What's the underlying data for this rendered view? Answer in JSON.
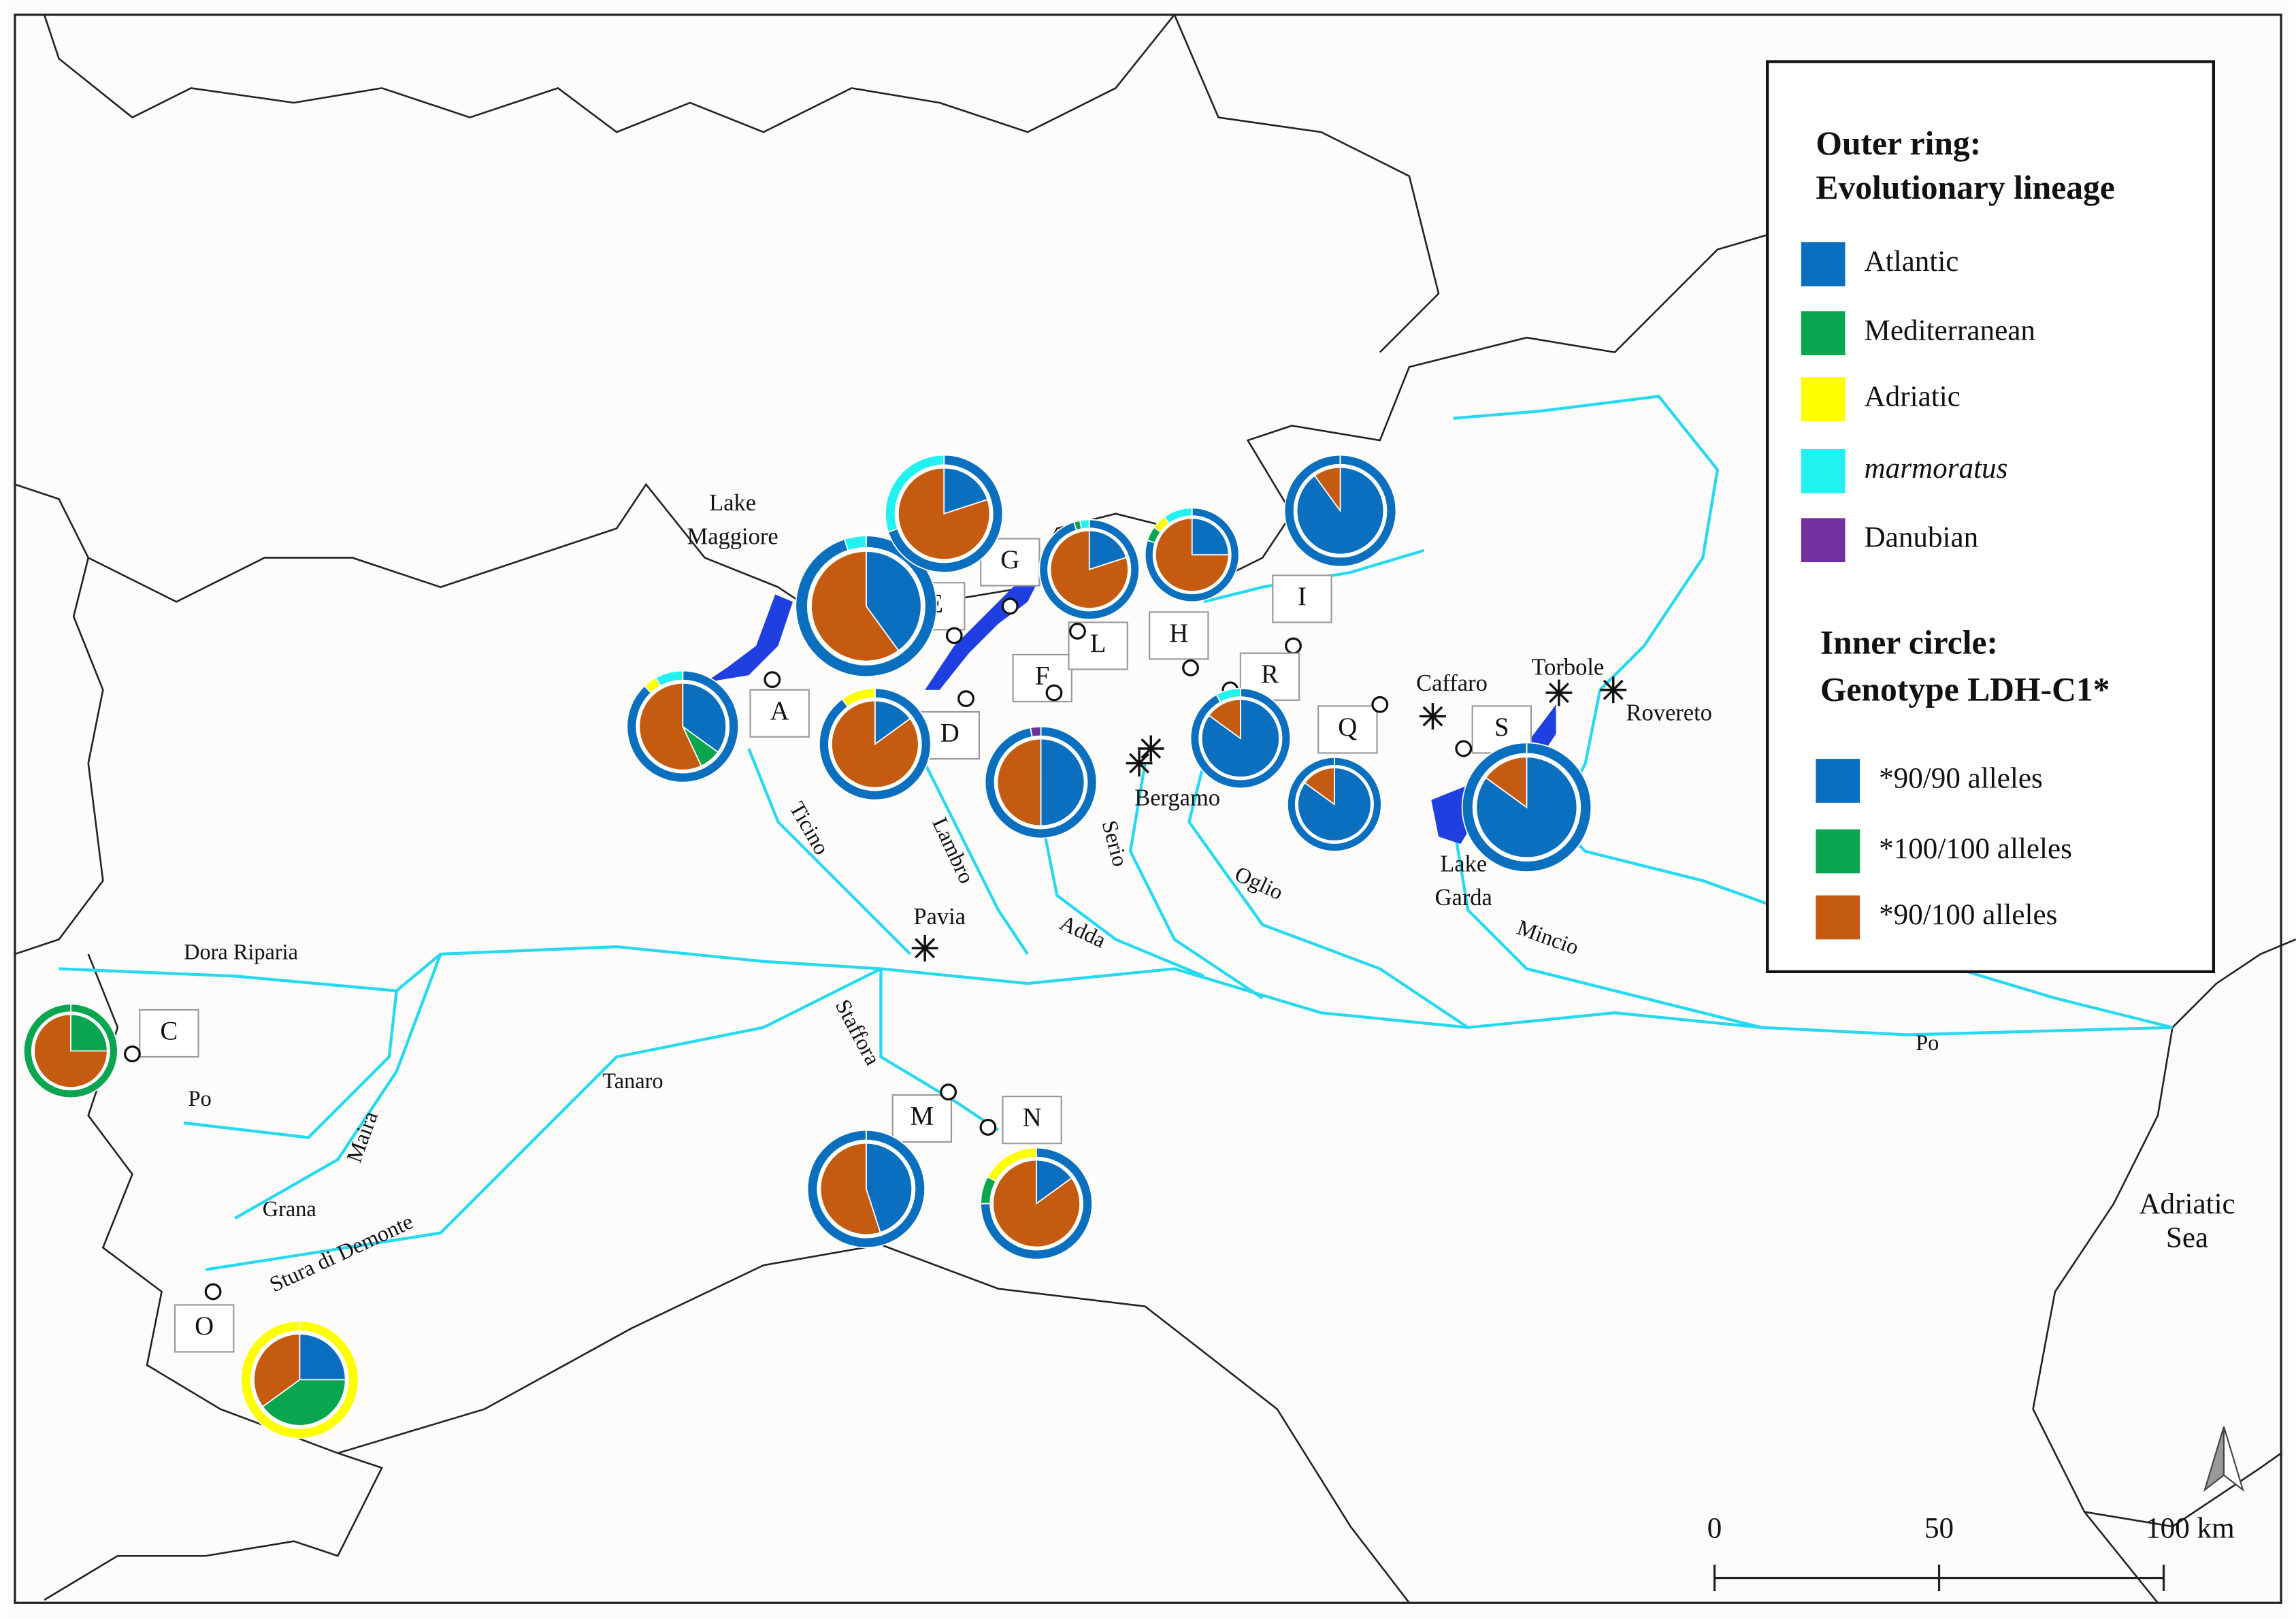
{
  "legend": {
    "outer_title": [
      "Outer ring:",
      "Evolutionary lineage"
    ],
    "lineages": [
      {
        "name": "Atlantic",
        "color": "#0b6fc0"
      },
      {
        "name": "Mediterranean",
        "color": "#0aa64f"
      },
      {
        "name": "Adriatic",
        "color": "#ffff00"
      },
      {
        "name": "marmoratus",
        "color": "#22f2ef"
      },
      {
        "name": "Danubian",
        "color": "#7030a0"
      }
    ],
    "inner_title": [
      "Inner circle:",
      "Genotype LDH-C1*"
    ],
    "genotypes": [
      {
        "name": "*90/90 alleles",
        "color": "#0b6fc0"
      },
      {
        "name": "*100/100 alleles",
        "color": "#0aa64f"
      },
      {
        "name": "*90/100 alleles",
        "color": "#c55a11"
      }
    ]
  },
  "site_labels": [
    "A",
    "C",
    "D",
    "E",
    "F",
    "G",
    "H",
    "I",
    "L",
    "M",
    "N",
    "O",
    "Q",
    "R",
    "S"
  ],
  "sites": [
    {
      "outer": [
        88,
        0,
        4,
        8,
        0
      ],
      "inner": [
        35,
        8,
        57
      ]
    },
    {
      "outer": [
        95,
        0,
        0,
        5,
        0
      ],
      "inner": [
        40,
        0,
        60
      ]
    },
    {
      "outer": [
        70,
        0,
        0,
        30,
        0
      ],
      "inner": [
        20,
        0,
        80
      ]
    },
    {
      "outer": [
        90,
        0,
        10,
        0,
        0
      ],
      "inner": [
        15,
        0,
        85
      ]
    },
    {
      "outer": [
        97,
        0,
        0,
        0,
        3
      ],
      "inner": [
        50,
        0,
        50
      ]
    },
    {
      "outer": [
        95,
        2,
        0,
        3,
        0
      ],
      "inner": [
        20,
        0,
        80
      ]
    },
    {
      "outer": [
        80,
        5,
        5,
        10,
        0
      ],
      "inner": [
        25,
        0,
        75
      ]
    },
    {
      "outer": [
        100,
        0,
        0,
        0,
        0
      ],
      "inner": [
        90,
        0,
        10
      ]
    },
    {
      "outer": [
        92,
        0,
        0,
        8,
        0
      ],
      "inner": [
        85,
        0,
        15
      ]
    },
    {
      "outer": [
        100,
        0,
        0,
        0,
        0
      ],
      "inner": [
        85,
        0,
        15
      ]
    },
    {
      "outer": [
        100,
        0,
        0,
        0,
        0
      ],
      "inner": [
        85,
        0,
        15
      ]
    },
    {
      "outer": [
        0,
        100,
        0,
        0,
        0
      ],
      "inner": [
        0,
        25,
        75
      ]
    },
    {
      "outer": [
        100,
        0,
        0,
        0,
        0
      ],
      "inner": [
        45,
        0,
        55
      ]
    },
    {
      "outer": [
        75,
        8,
        17,
        0,
        0
      ],
      "inner": [
        15,
        0,
        85
      ]
    },
    {
      "outer": [
        0,
        0,
        100,
        0,
        0
      ],
      "inner": [
        25,
        40,
        35
      ]
    }
  ],
  "places": [
    [
      "Lake",
      "Maggiore"
    ],
    [
      "Pavia"
    ],
    [
      "Bergamo"
    ],
    [
      "Caffaro"
    ],
    [
      "Torbole"
    ],
    [
      "Rovereto"
    ],
    [
      "Lake",
      "Garda"
    ],
    [
      "Adriatic",
      "Sea"
    ]
  ],
  "rivers": [
    "Ticino",
    "Lambro",
    "Serio",
    "Adda",
    "Oglio",
    "Mincio",
    "Po",
    "Dora Riparia",
    "Po",
    "Maira",
    "Tanaro",
    "Staffora",
    "Grana",
    "Stura di Demonte"
  ],
  "scale": {
    "ticks": [
      {
        "value": 0,
        "label": "0"
      },
      50,
      {
        "value": 100,
        "label": "100 km"
      }
    ]
  }
}
